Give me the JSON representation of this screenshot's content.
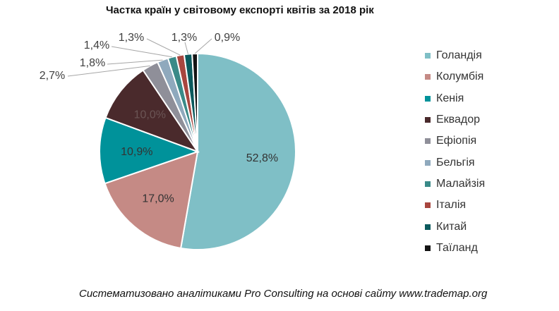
{
  "chart_data": {
    "type": "pie",
    "title": "Частка країн у світовому експорті квітів за 2018 рік",
    "categories": [
      "Голандія",
      "Колумбія",
      "Кенія",
      "Еквадор",
      "Ефіопія",
      "Бельгія",
      "Малайзія",
      "Італія",
      "Китай",
      "Таїланд"
    ],
    "values": [
      52.8,
      17.0,
      10.9,
      10.0,
      2.7,
      1.8,
      1.4,
      1.3,
      1.3,
      0.9
    ],
    "data_labels": [
      "52,8%",
      "17,0%",
      "10,9%",
      "10,0%",
      "2,7%",
      "1,8%",
      "1,4%",
      "1,3%",
      "1,3%",
      "0,9%"
    ],
    "colors": [
      "#7fbfc6",
      "#c58a85",
      "#00929a",
      "#4a2a2c",
      "#8f8f99",
      "#8fa9bd",
      "#3a8a88",
      "#a8463f",
      "#0b5a5d",
      "#141414"
    ],
    "legend_position": "right"
  },
  "source_note": "Систематизовано аналітиками Pro Consulting на основі сайту www.trademap.org"
}
